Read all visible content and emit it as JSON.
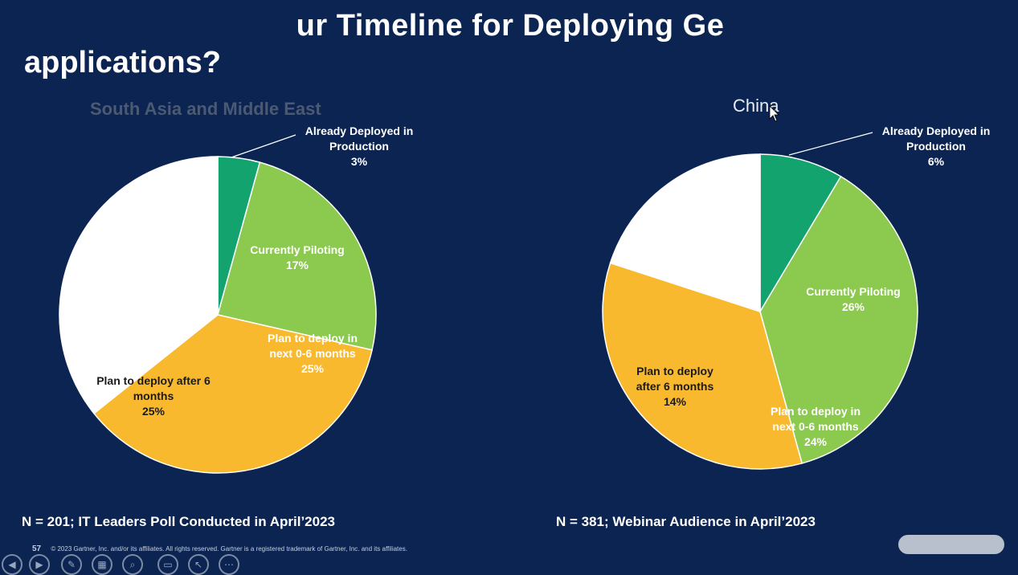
{
  "slide": {
    "title_line1": "ur Timeline for Deploying Ge",
    "title_line2": "applications?"
  },
  "chart_data": [
    {
      "type": "pie",
      "title": "South Asia and Middle East",
      "slices": [
        {
          "label": "Already Deployed in Production",
          "value": 3
        },
        {
          "label": "Currently Piloting",
          "value": 17
        },
        {
          "label": "Plan to deploy in next 0-6 months",
          "value": 25
        },
        {
          "label": "Plan to deploy after 6 months",
          "value": 25
        }
      ],
      "display_labels": [
        [
          "Already Deployed in",
          "Production",
          "3%"
        ],
        [
          "Currently Piloting",
          "17%"
        ],
        [
          "Plan to deploy in",
          "next 0-6 months",
          "25%"
        ],
        [
          "Plan to deploy after 6",
          "months",
          "25%"
        ]
      ],
      "colors": [
        "#13a36e",
        "#8cc94f",
        "#f9b92f",
        "#ffffff"
      ],
      "footnote": "N = 201; IT Leaders Poll Conducted in April’2023"
    },
    {
      "type": "pie",
      "title": "China",
      "slices": [
        {
          "label": "Already Deployed in Production",
          "value": 6
        },
        {
          "label": "Currently Piloting",
          "value": 26
        },
        {
          "label": "Plan to deploy in next 0-6 months",
          "value": 24
        },
        {
          "label": "Plan to deploy after 6 months",
          "value": 14
        }
      ],
      "display_labels": [
        [
          "Already Deployed in",
          "Production",
          "6%"
        ],
        [
          "Currently Piloting",
          "26%"
        ],
        [
          "Plan to deploy in",
          "next 0-6 months",
          "24%"
        ],
        [
          "Plan to deploy",
          "after 6 months",
          "14%"
        ]
      ],
      "colors": [
        "#13a36e",
        "#8cc94f",
        "#f9b92f",
        "#ffffff"
      ],
      "footnote": "N = 381; Webinar Audience in April’2023"
    }
  ],
  "footer": {
    "page_number": "57",
    "copyright": "© 2023 Gartner, Inc. and/or its affiliates. All rights reserved. Gartner is a registered trademark of Gartner, Inc. and its affiliates."
  },
  "toolbar_icons": [
    "prev-icon",
    "next-icon",
    "pen-icon",
    "slides-icon",
    "zoom-icon",
    "subtitles-icon",
    "pointer-icon",
    "more-icon"
  ]
}
